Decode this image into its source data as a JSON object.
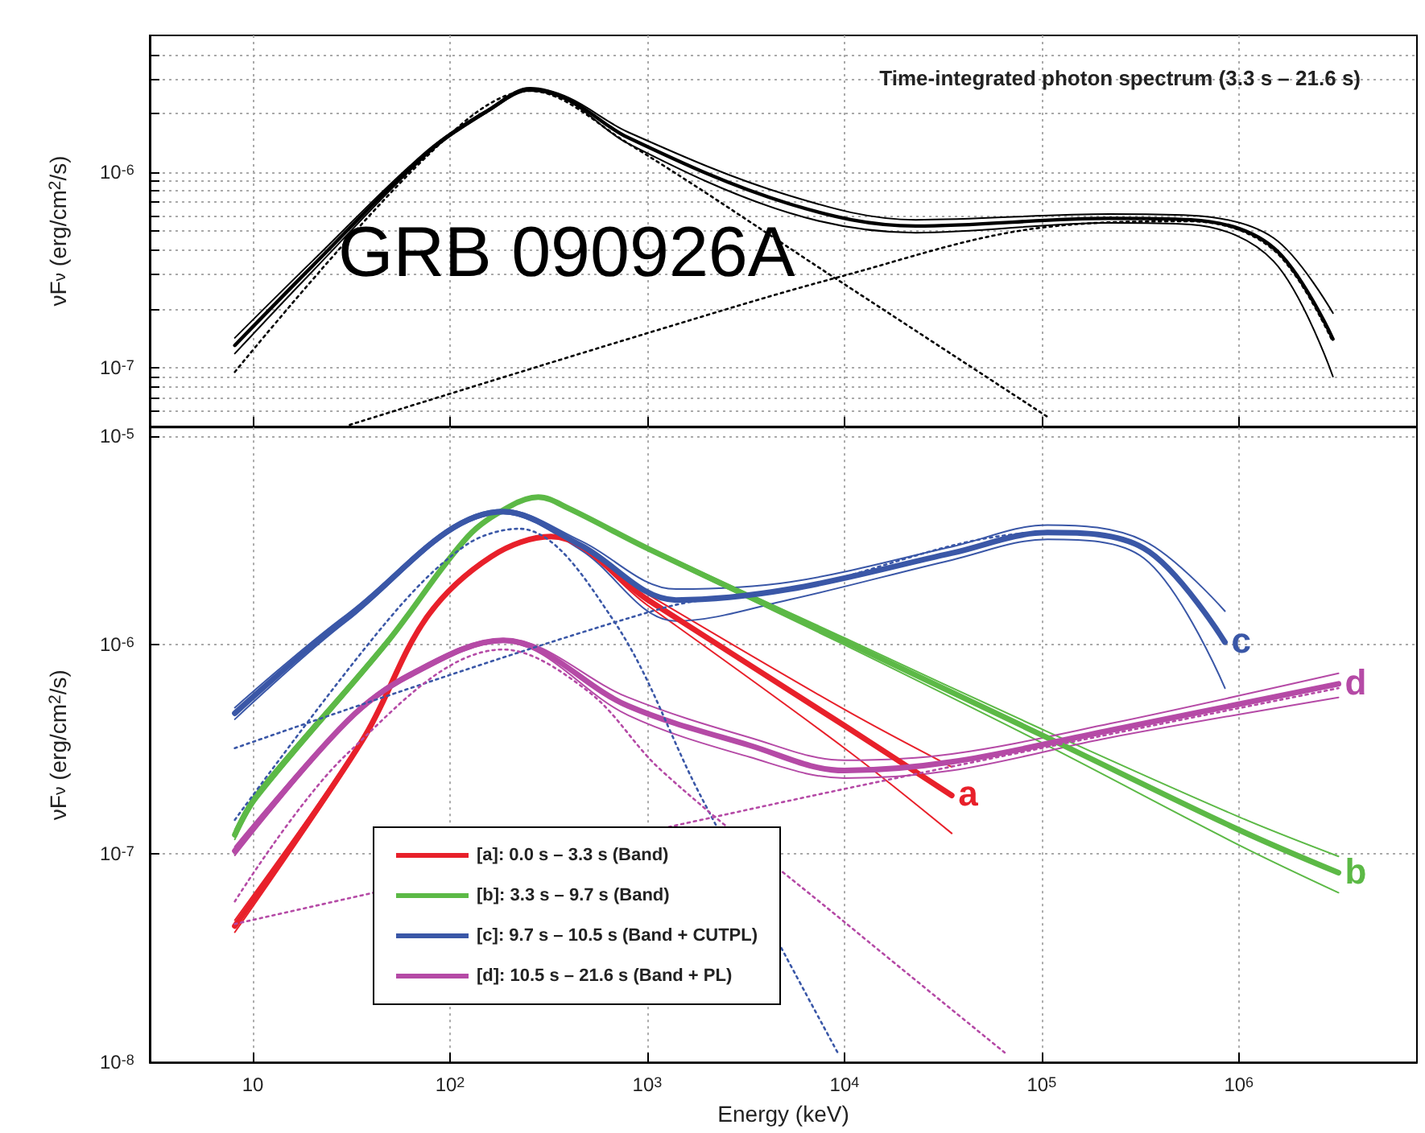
{
  "chart_data": [
    {
      "type": "line",
      "ylabel": "νF$_{ν}$ (erg/cm$^{2}$/s)",
      "log": "xy",
      "grid": true,
      "marker": "none",
      "tick_labels": "y",
      "annotations": [
        "Time-integrated photon spectrum (3.3 s – 21.6 s)",
        "GRB 090926A"
      ],
      "xlim": [
        3,
        8000000
      ],
      "xticks": [
        {
          "value": 10,
          "label": null
        },
        {
          "value": 100,
          "label": null
        },
        {
          "value": 1000,
          "label": null
        },
        {
          "value": 10000,
          "label": null
        },
        {
          "value": 100000,
          "label": null
        },
        {
          "value": 1000000,
          "label": null
        }
      ],
      "ylim": [
        5e-08,
        5e-06
      ],
      "yticks": [
        {
          "value": 6e-08,
          "label": null
        },
        {
          "value": 7e-08,
          "label": null
        },
        {
          "value": 8e-08,
          "label": null
        },
        {
          "value": 9e-08,
          "label": null
        },
        {
          "value": 1e-07,
          "label": "10$^{-7}$"
        },
        {
          "value": 2e-07,
          "label": null
        },
        {
          "value": 3e-07,
          "label": null
        },
        {
          "value": 4e-07,
          "label": null
        },
        {
          "value": 5e-07,
          "label": null
        },
        {
          "value": 6e-07,
          "label": null
        },
        {
          "value": 7e-07,
          "label": null
        },
        {
          "value": 8e-07,
          "label": null
        },
        {
          "value": 9e-07,
          "label": null
        },
        {
          "value": 1e-06,
          "label": "10$^{-6}$"
        },
        {
          "value": 2e-06,
          "label": null
        },
        {
          "value": 3e-06,
          "label": null
        },
        {
          "value": 4e-06,
          "label": null
        }
      ],
      "series": [
        {
          "color": "#000000",
          "x": [
            8.1,
            20,
            76,
            160,
            254,
            400,
            800,
            5200,
            23000,
            220000,
            570000,
            1500000,
            3000000
          ],
          "values": [
            1.3e-07,
            3.3e-07,
            1.25e-06,
            2.1e-06,
            2.65e-06,
            2.35e-06,
            1.5e-06,
            6.9e-07,
            5.3e-07,
            5.8e-07,
            5.7e-07,
            4.1e-07,
            1.4e-07
          ]
        },
        {
          "color": "#000000",
          "x": [
            8.1,
            20,
            76,
            160,
            254,
            400,
            800,
            5200,
            23000,
            220000,
            570000,
            1500000,
            3000000
          ],
          "values": [
            1.18e-07,
            3.1e-07,
            1.22e-06,
            2.07e-06,
            2.6e-06,
            2.3e-06,
            1.4e-06,
            6.2e-07,
            4.9e-07,
            5.5e-07,
            5.4e-07,
            3.5e-07,
            9e-08
          ]
        },
        {
          "color": "#000000",
          "x": [
            8.1,
            20,
            76,
            160,
            254,
            400,
            800,
            5200,
            23000,
            220000,
            570000,
            1500000,
            3000000
          ],
          "values": [
            1.42e-07,
            3.5e-07,
            1.28e-06,
            2.13e-06,
            2.7e-06,
            2.4e-06,
            1.6e-06,
            7.6e-07,
            5.7e-07,
            6.1e-07,
            6e-07,
            4.6e-07,
            1.9e-07
          ]
        },
        {
          "color": "#000000",
          "line_style": "dotted",
          "x": [
            8.1,
            76,
            254,
            800,
            9300,
            110000
          ],
          "values": [
            9.5e-08,
            1.2e-06,
            2.6e-06,
            1.4e-06,
            2.8e-07,
            5.5e-08
          ]
        },
        {
          "color": "#000000",
          "line_style": "dotted",
          "x": [
            31,
            1000,
            9300,
            100000,
            570000,
            1500000,
            3000000
          ],
          "values": [
            5.1e-08,
            1.5e-07,
            2.9e-07,
            5.2e-07,
            5.6e-07,
            4e-07,
            1.35e-07
          ]
        }
      ]
    },
    {
      "type": "line",
      "xlabel": "Energy (keV)",
      "ylabel": "νF$_{ν}$ (erg/cm$^{2}$/s)",
      "log": "xy",
      "grid": true,
      "marker": "none",
      "legend": "bottom left",
      "annotations": [
        {
          "text": "a",
          "x": 35000,
          "y": 1.9e-07
        },
        {
          "text": "b",
          "x": 3200000,
          "y": 8.1e-08
        },
        {
          "text": "c",
          "x": 850000,
          "y": 1.03e-06
        },
        {
          "text": "d",
          "x": 3200000,
          "y": 6.5e-07
        }
      ],
      "xlim": [
        3,
        8000000
      ],
      "xticks": [
        10,
        {
          "value": 100,
          "label": "10$^{2}$"
        },
        {
          "value": 1000,
          "label": "10$^{3}$"
        },
        {
          "value": 10000,
          "label": "10$^{4}$"
        },
        {
          "value": 100000,
          "label": "10$^{5}$"
        },
        {
          "value": 1000000,
          "label": "10$^{6}$"
        }
      ],
      "ylim": [
        1e-08,
        1.1e-05
      ],
      "yticks": [
        {
          "value": 1e-08,
          "label": "10$^{-8}$"
        },
        {
          "value": 1e-07,
          "label": "10$^{-7}$"
        },
        {
          "value": 1e-06,
          "label": "10$^{-6}$"
        },
        {
          "value": 1e-05,
          "label": "10$^{-5}$"
        }
      ],
      "series": [
        {
          "name": "[a]: 0.0 s – 3.3 s (Band)",
          "color": "#e8202a",
          "x": [
            8.1,
            36,
            76,
            162,
            325,
            1000,
            10000,
            35000
          ],
          "values": [
            4.5e-08,
            3.5e-07,
            1.35e-06,
            2.65e-06,
            3.3e-06,
            1.65e-06,
            4.1e-07,
            1.9e-07
          ]
        },
        {
          "name": "[b]: 3.3 s – 9.7 s (Band)",
          "color": "#5cb946",
          "x": [
            8.1,
            10.5,
            48,
            123,
            200,
            280,
            400,
            1000,
            10000,
            100000,
            1000000,
            3200000
          ],
          "values": [
            1.23e-07,
            1.9e-07,
            1.03e-06,
            3.3e-06,
            4.6e-06,
            5.1e-06,
            4.5e-06,
            2.9e-06,
            1.04e-06,
            3.7e-07,
            1.3e-07,
            8.1e-08
          ]
        },
        {
          "name": "[c]: 9.7 s – 10.5 s (Band + CUTPL)",
          "color": "#3a57a7",
          "x": [
            8.1,
            30,
            186,
            460,
            1400,
            5300,
            35000,
            107000,
            330000,
            850000
          ],
          "values": [
            4.7e-07,
            1.35e-06,
            4.35e-06,
            3e-06,
            1.64e-06,
            1.85e-06,
            2.75e-06,
            3.45e-06,
            2.9e-06,
            1.03e-06
          ]
        },
        {
          "name": "[d]: 10.5 s – 21.6 s (Band + PL)",
          "color": "#b54aa6",
          "x": [
            8.1,
            30,
            63,
            186,
            800,
            3300,
            10000,
            35000,
            224000,
            3200000
          ],
          "values": [
            1.03e-07,
            4.3e-07,
            7.2e-07,
            1.05e-06,
            5.1e-07,
            3.3e-07,
            2.5e-07,
            2.75e-07,
            3.9e-07,
            6.5e-07
          ]
        },
        {
          "color": "#e8202a",
          "x": [
            8.1,
            36,
            76,
            162,
            325,
            1000,
            10000,
            35000
          ],
          "values": [
            4.2e-08,
            3.4e-07,
            1.32e-06,
            2.6e-06,
            3.25e-06,
            1.55e-06,
            3.2e-07,
            1.25e-07
          ]
        },
        {
          "color": "#e8202a",
          "x": [
            8.1,
            36,
            76,
            162,
            325,
            1000,
            10000,
            35000
          ],
          "values": [
            4.8e-08,
            3.6e-07,
            1.38e-06,
            2.7e-06,
            3.35e-06,
            1.75e-06,
            4.9e-07,
            2.6e-07
          ]
        },
        {
          "color": "#5cb946",
          "x": [
            8.1,
            10.5,
            48,
            123,
            200,
            280,
            400,
            1000,
            10000,
            100000,
            1000000,
            3200000
          ],
          "values": [
            1.17e-07,
            1.82e-07,
            1e-06,
            3.25e-06,
            4.55e-06,
            5.05e-06,
            4.45e-06,
            2.85e-06,
            1e-06,
            3.4e-07,
            1.1e-07,
            6.5e-08
          ]
        },
        {
          "color": "#5cb946",
          "x": [
            8.1,
            10.5,
            48,
            123,
            200,
            280,
            400,
            1000,
            10000,
            100000,
            1000000,
            3200000
          ],
          "values": [
            1.3e-07,
            1.98e-07,
            1.06e-06,
            3.35e-06,
            4.65e-06,
            5.15e-06,
            4.55e-06,
            2.95e-06,
            1.08e-06,
            3.95e-07,
            1.5e-07,
            9.7e-08
          ]
        },
        {
          "color": "#3a57a7",
          "x": [
            8.1,
            30,
            186,
            460,
            1400,
            5300,
            35000,
            107000,
            330000,
            850000
          ],
          "values": [
            4.4e-07,
            1.3e-06,
            4.25e-06,
            2.85e-06,
            1.3e-06,
            1.65e-06,
            2.55e-06,
            3.2e-06,
            2.6e-06,
            6.2e-07
          ]
        },
        {
          "color": "#3a57a7",
          "x": [
            8.1,
            30,
            186,
            460,
            1400,
            5300,
            35000,
            107000,
            330000,
            850000
          ],
          "values": [
            5e-07,
            1.4e-06,
            4.45e-06,
            3.15e-06,
            1.85e-06,
            2e-06,
            2.95e-06,
            3.75e-06,
            3.15e-06,
            1.45e-06
          ]
        },
        {
          "color": "#b54aa6",
          "x": [
            8.1,
            30,
            63,
            186,
            800,
            3300,
            10000,
            35000,
            224000,
            3200000
          ],
          "values": [
            9.8e-08,
            4.2e-07,
            7e-07,
            1.03e-06,
            4.6e-07,
            2.9e-07,
            2.3e-07,
            2.5e-07,
            3.6e-07,
            5.6e-07
          ]
        },
        {
          "color": "#b54aa6",
          "x": [
            8.1,
            30,
            63,
            186,
            800,
            3300,
            10000,
            35000,
            224000,
            3200000
          ],
          "values": [
            1.08e-07,
            4.4e-07,
            7.4e-07,
            1.07e-06,
            5.6e-07,
            3.6e-07,
            2.8e-07,
            3e-07,
            4.2e-07,
            7.3e-07
          ]
        },
        {
          "color": "#3a57a7",
          "line_style": "dotted",
          "x": [
            8.1,
            48,
            120,
            224,
            660,
            1860,
            9300
          ],
          "values": [
            1.45e-07,
            1.3e-06,
            3e-06,
            3.6e-06,
            1.35e-06,
            1.9e-07,
            1.1e-08
          ]
        },
        {
          "color": "#3a57a7",
          "line_style": "dotted",
          "x": [
            8.1,
            1200,
            5300,
            107000,
            330000,
            850000
          ],
          "values": [
            3.2e-07,
            1.5e-06,
            1.83e-06,
            3.45e-06,
            2.9e-06,
            1.03e-06
          ]
        },
        {
          "color": "#b54aa6",
          "line_style": "dotted",
          "x": [
            8.1,
            30,
            186,
            500,
            1180,
            10000,
            66000
          ],
          "values": [
            5.9e-08,
            3e-07,
            9.5e-07,
            6e-07,
            2.5e-07,
            4.7e-08,
            1.1e-08
          ]
        },
        {
          "color": "#b54aa6",
          "line_style": "dotted",
          "x": [
            8.1,
            7000,
            3200000
          ],
          "values": [
            4.6e-08,
            1.9e-07,
            6.2e-07
          ]
        }
      ]
    }
  ]
}
